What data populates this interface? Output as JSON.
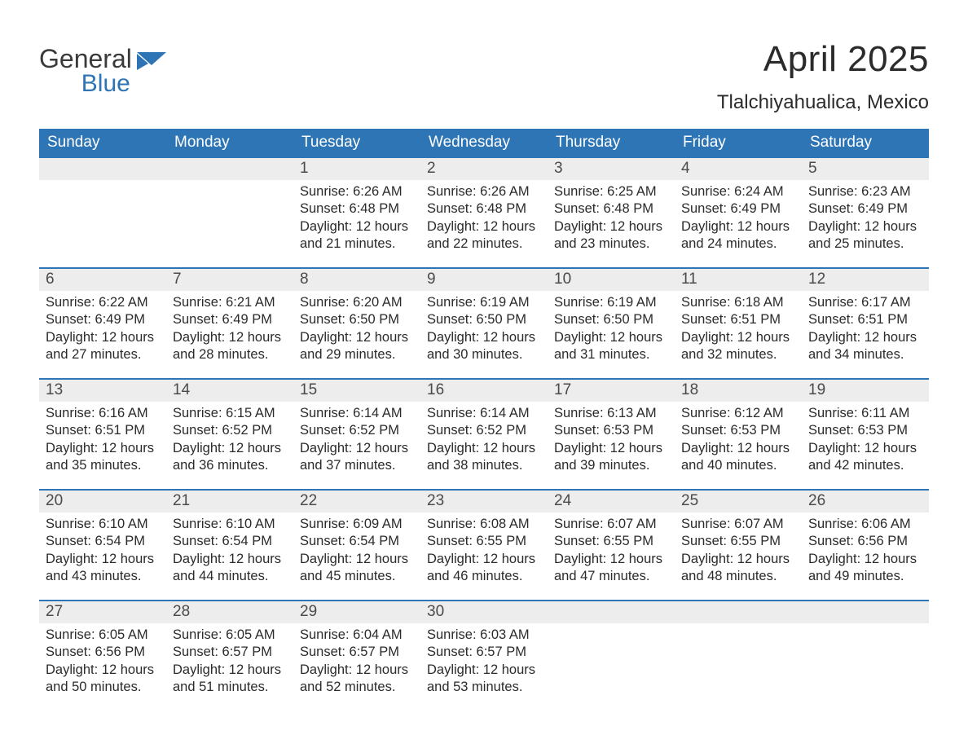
{
  "logo": {
    "word1": "General",
    "word2": "Blue",
    "flag_color": "#2e75b6",
    "text_color": "#3a3a3a"
  },
  "title": "April 2025",
  "location": "Tlalchiyahualica, Mexico",
  "colors": {
    "header_bg": "#2e75b6",
    "header_text": "#ffffff",
    "daynum_bg": "#ededed",
    "daynum_text": "#4a4a4a",
    "body_text": "#2b2b2b",
    "week_divider": "#2e75b6",
    "page_bg": "#ffffff"
  },
  "fonts": {
    "title_size_pt": 33,
    "location_size_pt": 18,
    "header_size_pt": 14,
    "daynum_size_pt": 14,
    "cell_size_pt": 12
  },
  "day_names": [
    "Sunday",
    "Monday",
    "Tuesday",
    "Wednesday",
    "Thursday",
    "Friday",
    "Saturday"
  ],
  "weeks": [
    [
      {
        "day": "",
        "sunrise": "",
        "sunset": "",
        "daylight": ""
      },
      {
        "day": "",
        "sunrise": "",
        "sunset": "",
        "daylight": ""
      },
      {
        "day": "1",
        "sunrise": "Sunrise: 6:26 AM",
        "sunset": "Sunset: 6:48 PM",
        "daylight": "Daylight: 12 hours and 21 minutes."
      },
      {
        "day": "2",
        "sunrise": "Sunrise: 6:26 AM",
        "sunset": "Sunset: 6:48 PM",
        "daylight": "Daylight: 12 hours and 22 minutes."
      },
      {
        "day": "3",
        "sunrise": "Sunrise: 6:25 AM",
        "sunset": "Sunset: 6:48 PM",
        "daylight": "Daylight: 12 hours and 23 minutes."
      },
      {
        "day": "4",
        "sunrise": "Sunrise: 6:24 AM",
        "sunset": "Sunset: 6:49 PM",
        "daylight": "Daylight: 12 hours and 24 minutes."
      },
      {
        "day": "5",
        "sunrise": "Sunrise: 6:23 AM",
        "sunset": "Sunset: 6:49 PM",
        "daylight": "Daylight: 12 hours and 25 minutes."
      }
    ],
    [
      {
        "day": "6",
        "sunrise": "Sunrise: 6:22 AM",
        "sunset": "Sunset: 6:49 PM",
        "daylight": "Daylight: 12 hours and 27 minutes."
      },
      {
        "day": "7",
        "sunrise": "Sunrise: 6:21 AM",
        "sunset": "Sunset: 6:49 PM",
        "daylight": "Daylight: 12 hours and 28 minutes."
      },
      {
        "day": "8",
        "sunrise": "Sunrise: 6:20 AM",
        "sunset": "Sunset: 6:50 PM",
        "daylight": "Daylight: 12 hours and 29 minutes."
      },
      {
        "day": "9",
        "sunrise": "Sunrise: 6:19 AM",
        "sunset": "Sunset: 6:50 PM",
        "daylight": "Daylight: 12 hours and 30 minutes."
      },
      {
        "day": "10",
        "sunrise": "Sunrise: 6:19 AM",
        "sunset": "Sunset: 6:50 PM",
        "daylight": "Daylight: 12 hours and 31 minutes."
      },
      {
        "day": "11",
        "sunrise": "Sunrise: 6:18 AM",
        "sunset": "Sunset: 6:51 PM",
        "daylight": "Daylight: 12 hours and 32 minutes."
      },
      {
        "day": "12",
        "sunrise": "Sunrise: 6:17 AM",
        "sunset": "Sunset: 6:51 PM",
        "daylight": "Daylight: 12 hours and 34 minutes."
      }
    ],
    [
      {
        "day": "13",
        "sunrise": "Sunrise: 6:16 AM",
        "sunset": "Sunset: 6:51 PM",
        "daylight": "Daylight: 12 hours and 35 minutes."
      },
      {
        "day": "14",
        "sunrise": "Sunrise: 6:15 AM",
        "sunset": "Sunset: 6:52 PM",
        "daylight": "Daylight: 12 hours and 36 minutes."
      },
      {
        "day": "15",
        "sunrise": "Sunrise: 6:14 AM",
        "sunset": "Sunset: 6:52 PM",
        "daylight": "Daylight: 12 hours and 37 minutes."
      },
      {
        "day": "16",
        "sunrise": "Sunrise: 6:14 AM",
        "sunset": "Sunset: 6:52 PM",
        "daylight": "Daylight: 12 hours and 38 minutes."
      },
      {
        "day": "17",
        "sunrise": "Sunrise: 6:13 AM",
        "sunset": "Sunset: 6:53 PM",
        "daylight": "Daylight: 12 hours and 39 minutes."
      },
      {
        "day": "18",
        "sunrise": "Sunrise: 6:12 AM",
        "sunset": "Sunset: 6:53 PM",
        "daylight": "Daylight: 12 hours and 40 minutes."
      },
      {
        "day": "19",
        "sunrise": "Sunrise: 6:11 AM",
        "sunset": "Sunset: 6:53 PM",
        "daylight": "Daylight: 12 hours and 42 minutes."
      }
    ],
    [
      {
        "day": "20",
        "sunrise": "Sunrise: 6:10 AM",
        "sunset": "Sunset: 6:54 PM",
        "daylight": "Daylight: 12 hours and 43 minutes."
      },
      {
        "day": "21",
        "sunrise": "Sunrise: 6:10 AM",
        "sunset": "Sunset: 6:54 PM",
        "daylight": "Daylight: 12 hours and 44 minutes."
      },
      {
        "day": "22",
        "sunrise": "Sunrise: 6:09 AM",
        "sunset": "Sunset: 6:54 PM",
        "daylight": "Daylight: 12 hours and 45 minutes."
      },
      {
        "day": "23",
        "sunrise": "Sunrise: 6:08 AM",
        "sunset": "Sunset: 6:55 PM",
        "daylight": "Daylight: 12 hours and 46 minutes."
      },
      {
        "day": "24",
        "sunrise": "Sunrise: 6:07 AM",
        "sunset": "Sunset: 6:55 PM",
        "daylight": "Daylight: 12 hours and 47 minutes."
      },
      {
        "day": "25",
        "sunrise": "Sunrise: 6:07 AM",
        "sunset": "Sunset: 6:55 PM",
        "daylight": "Daylight: 12 hours and 48 minutes."
      },
      {
        "day": "26",
        "sunrise": "Sunrise: 6:06 AM",
        "sunset": "Sunset: 6:56 PM",
        "daylight": "Daylight: 12 hours and 49 minutes."
      }
    ],
    [
      {
        "day": "27",
        "sunrise": "Sunrise: 6:05 AM",
        "sunset": "Sunset: 6:56 PM",
        "daylight": "Daylight: 12 hours and 50 minutes."
      },
      {
        "day": "28",
        "sunrise": "Sunrise: 6:05 AM",
        "sunset": "Sunset: 6:57 PM",
        "daylight": "Daylight: 12 hours and 51 minutes."
      },
      {
        "day": "29",
        "sunrise": "Sunrise: 6:04 AM",
        "sunset": "Sunset: 6:57 PM",
        "daylight": "Daylight: 12 hours and 52 minutes."
      },
      {
        "day": "30",
        "sunrise": "Sunrise: 6:03 AM",
        "sunset": "Sunset: 6:57 PM",
        "daylight": "Daylight: 12 hours and 53 minutes."
      },
      {
        "day": "",
        "sunrise": "",
        "sunset": "",
        "daylight": ""
      },
      {
        "day": "",
        "sunrise": "",
        "sunset": "",
        "daylight": ""
      },
      {
        "day": "",
        "sunrise": "",
        "sunset": "",
        "daylight": ""
      }
    ]
  ]
}
